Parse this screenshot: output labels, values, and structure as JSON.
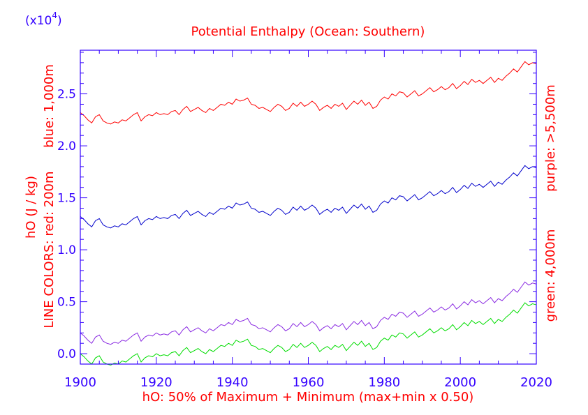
{
  "chart_data": {
    "type": "line",
    "title": "Potential Enthalpy (Ocean: Southern)",
    "scale_label": "(x10",
    "scale_exponent": "4",
    "scale_close": ")",
    "xlabel": "hO: 50% of Maximum + Minimum (max+min x 0.50)",
    "ylabel_left": [
      "hO (J / kg)",
      "LINE COLORS: red: 200m",
      "blue: 1,000m"
    ],
    "ylabel_right": [
      "purple: >5,500m",
      "green: 4,000m"
    ],
    "xlim": [
      1900,
      2020
    ],
    "ylim": [
      -0.1,
      2.92
    ],
    "xticks": [
      1900,
      1920,
      1940,
      1960,
      1980,
      2000,
      2020
    ],
    "xtick_labels": [
      "1900",
      "1920",
      "1940",
      "1960",
      "1980",
      "2000",
      "2020"
    ],
    "yticks": [
      0.0,
      0.5,
      1.0,
      1.5,
      2.0,
      2.5
    ],
    "ytick_labels": [
      "0.0",
      "0.5",
      "1.0",
      "1.5",
      "2.0",
      "2.5"
    ],
    "colors": {
      "axis": "#3300ff",
      "text": "#ff0000",
      "red": "#ff0000",
      "blue": "#0000cc",
      "purple": "#8a2be2",
      "green": "#00dd00"
    },
    "base_year": 1900,
    "base_shape": [
      0.12,
      0.09,
      0.05,
      0.02,
      0.08,
      0.1,
      0.04,
      0.02,
      0.01,
      0.03,
      0.02,
      0.05,
      0.04,
      0.07,
      0.1,
      0.12,
      0.04,
      0.08,
      0.1,
      0.09,
      0.12,
      0.1,
      0.11,
      0.1,
      0.13,
      0.14,
      0.1,
      0.15,
      0.18,
      0.13,
      0.15,
      0.17,
      0.14,
      0.12,
      0.16,
      0.14,
      0.17,
      0.2,
      0.19,
      0.22,
      0.2,
      0.25,
      0.23,
      0.24,
      0.26,
      0.2,
      0.19,
      0.16,
      0.17,
      0.15,
      0.13,
      0.17,
      0.2,
      0.18,
      0.14,
      0.16,
      0.21,
      0.18,
      0.22,
      0.18,
      0.2,
      0.23,
      0.2,
      0.14,
      0.17,
      0.19,
      0.16,
      0.2,
      0.18,
      0.21,
      0.15,
      0.19,
      0.23,
      0.2,
      0.24,
      0.19,
      0.22,
      0.16,
      0.18,
      0.24,
      0.27,
      0.25,
      0.3,
      0.28,
      0.32,
      0.31,
      0.27,
      0.3,
      0.33,
      0.28,
      0.3,
      0.33,
      0.36,
      0.32,
      0.34,
      0.37,
      0.34,
      0.36,
      0.4,
      0.35,
      0.38,
      0.42,
      0.39,
      0.44,
      0.41,
      0.43,
      0.4,
      0.43,
      0.46,
      0.41,
      0.45,
      0.43,
      0.47,
      0.5,
      0.54,
      0.51,
      0.56,
      0.61,
      0.58,
      0.6,
      0.59
    ],
    "series": [
      {
        "key": "red",
        "offset": 2.2
      },
      {
        "key": "blue",
        "offset": 1.2
      },
      {
        "key": "purple",
        "offset": 0.08
      },
      {
        "key": "green",
        "offset": -0.12
      }
    ]
  }
}
